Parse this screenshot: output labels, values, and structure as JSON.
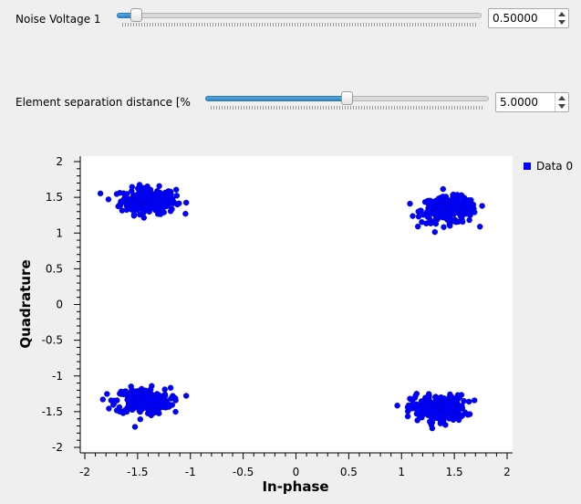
{
  "controls": {
    "noise": {
      "label": "Noise Voltage 1",
      "value": "0.50000",
      "fraction": 0.04
    },
    "separation": {
      "label": "Element separation distance [%",
      "value": "5.0000",
      "fraction": 0.5
    }
  },
  "chart_data": {
    "type": "scatter",
    "xlabel": "In-phase",
    "ylabel": "Quadrature",
    "xlim": [
      -2,
      2
    ],
    "ylim": [
      -2,
      2
    ],
    "xticks": [
      "-2",
      "-1.5",
      "-1",
      "-0.5",
      "0",
      "0.5",
      "1",
      "1.5",
      "2"
    ],
    "yticks": [
      "2",
      "1.5",
      "1",
      "0.5",
      "0",
      "-0.5",
      "-1",
      "-1.5",
      "-2"
    ],
    "legend_position": "top-right",
    "grid": false,
    "series": [
      {
        "name": "Data 0",
        "color": "#0000ff",
        "clusters": [
          {
            "center": [
              -1.4,
              1.45
            ],
            "spread": [
              0.13,
              0.09
            ]
          },
          {
            "center": [
              1.45,
              1.32
            ],
            "spread": [
              0.13,
              0.09
            ]
          },
          {
            "center": [
              -1.45,
              -1.35
            ],
            "spread": [
              0.13,
              0.09
            ]
          },
          {
            "center": [
              1.35,
              -1.45
            ],
            "spread": [
              0.13,
              0.09
            ]
          }
        ]
      }
    ]
  }
}
